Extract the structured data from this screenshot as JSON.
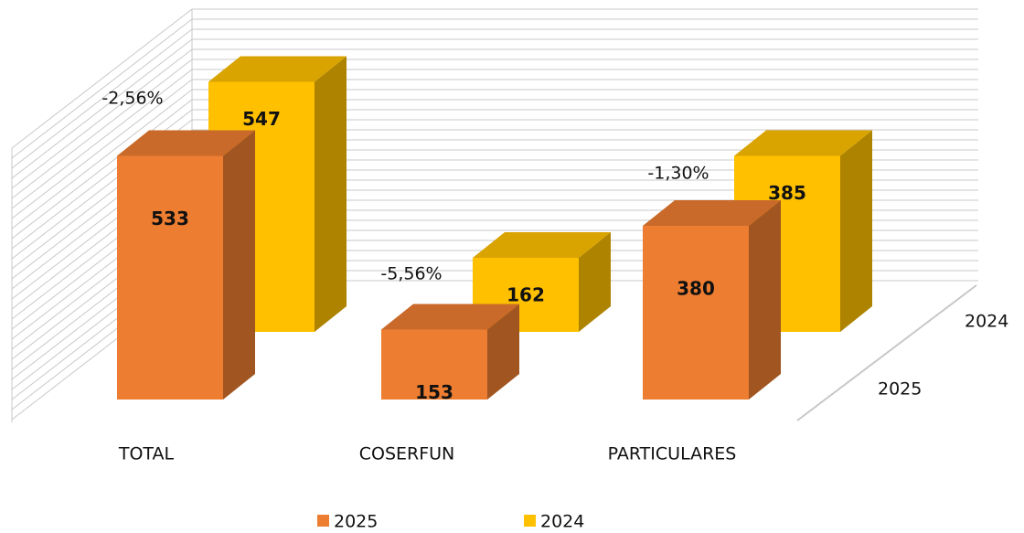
{
  "chart_data": {
    "type": "bar3d",
    "categories": [
      "TOTAL",
      "COSERFUN",
      "PARTICULARES"
    ],
    "series": [
      {
        "name": "2025",
        "color": "#ED7D31",
        "values": [
          533,
          153,
          380
        ]
      },
      {
        "name": "2024",
        "color": "#FFC000",
        "values": [
          547,
          162,
          385
        ]
      }
    ],
    "annotations": [
      "-2,56%",
      "-5,56%",
      "-1,30%"
    ]
  }
}
